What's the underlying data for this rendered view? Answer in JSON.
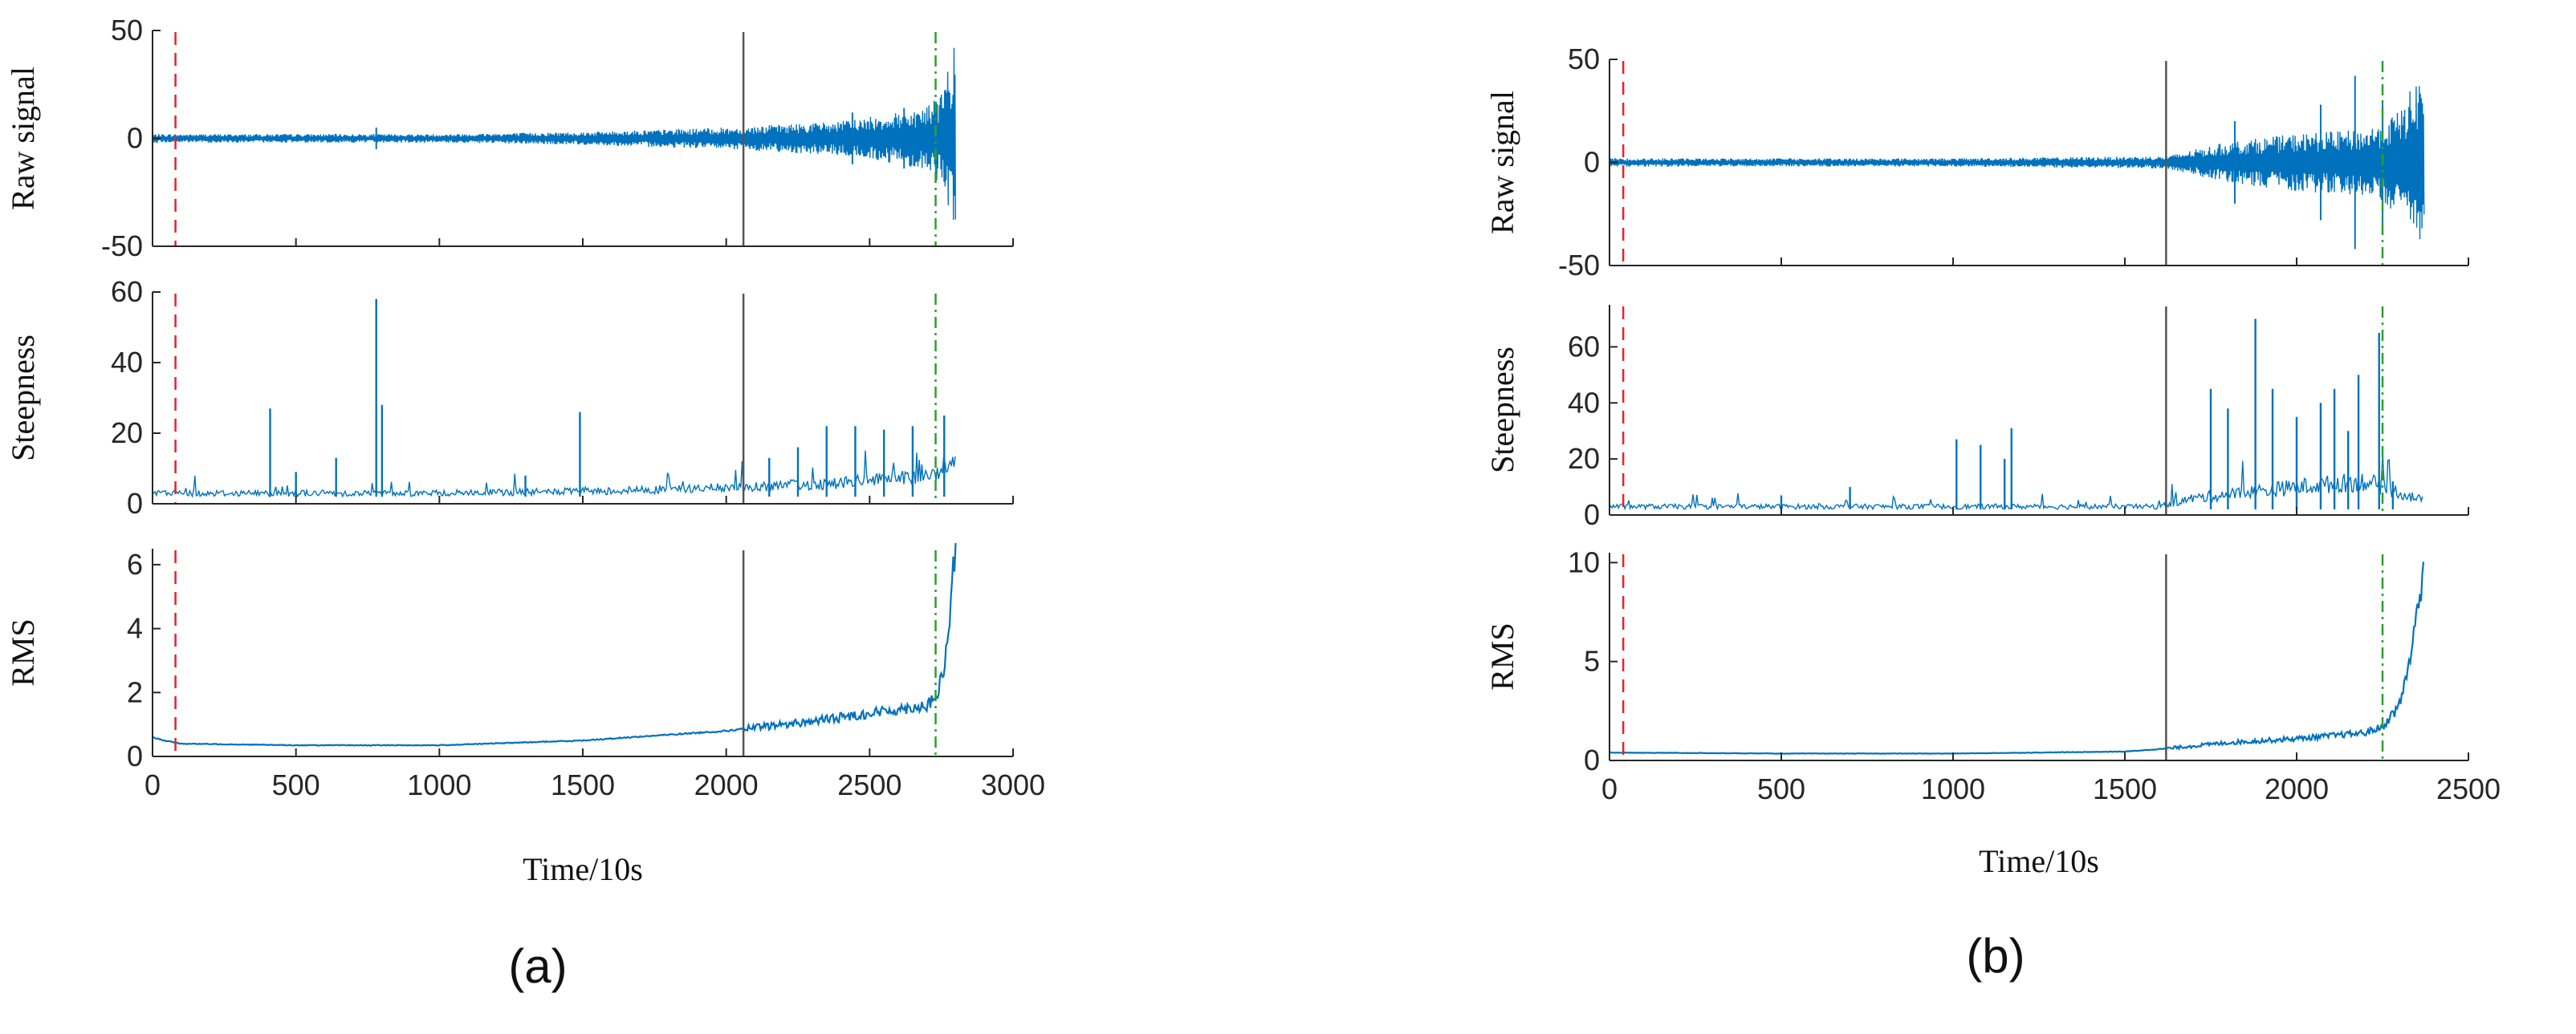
{
  "colors": {
    "signal": "#0072bd",
    "axis": "#262626",
    "failure_marker": "#e3242b",
    "degradation_marker": "#555555",
    "end_marker": "#2ca02c"
  },
  "chart_data": [
    {
      "type": "line",
      "panel_label": "(a)",
      "xlabel": "Time/10s",
      "xlim": [
        0,
        3000
      ],
      "xticks": [
        0,
        500,
        1000,
        1500,
        2000,
        2500,
        3000
      ],
      "x_end": 2800,
      "markers": [
        {
          "x": 80,
          "style": "red-dashed"
        },
        {
          "x": 2060,
          "style": "black-solid"
        },
        {
          "x": 2730,
          "style": "green-dashdot"
        }
      ],
      "subplots": [
        {
          "ylabel": "Raw signal",
          "ylim": [
            -50,
            50
          ],
          "yticks": [
            -50,
            0,
            50
          ],
          "envelope": [
            [
              0,
              2
            ],
            [
              500,
              2
            ],
            [
              1000,
              2
            ],
            [
              1500,
              3
            ],
            [
              2000,
              5
            ],
            [
              2400,
              8
            ],
            [
              2600,
              12
            ],
            [
              2700,
              15
            ],
            [
              2750,
              22
            ],
            [
              2780,
              35
            ],
            [
              2800,
              45
            ]
          ],
          "spikes": [
            {
              "x": 780,
              "y": 5
            },
            {
              "x": 2440,
              "y": 12
            },
            {
              "x": 2620,
              "y": 14
            }
          ]
        },
        {
          "ylabel": "Steepness",
          "ylim": [
            0,
            60
          ],
          "yticks": [
            0,
            20,
            40,
            60
          ],
          "baseline": [
            [
              0,
              3
            ],
            [
              1000,
              3
            ],
            [
              1500,
              3.5
            ],
            [
              2000,
              4.5
            ],
            [
              2300,
              5.5
            ],
            [
              2600,
              7
            ],
            [
              2730,
              8
            ],
            [
              2770,
              12
            ],
            [
              2800,
              13
            ]
          ],
          "spikes": [
            {
              "x": 410,
              "y": 27
            },
            {
              "x": 500,
              "y": 9
            },
            {
              "x": 640,
              "y": 13
            },
            {
              "x": 780,
              "y": 58
            },
            {
              "x": 800,
              "y": 28
            },
            {
              "x": 1300,
              "y": 8
            },
            {
              "x": 1490,
              "y": 26
            },
            {
              "x": 2150,
              "y": 13
            },
            {
              "x": 2250,
              "y": 16
            },
            {
              "x": 2350,
              "y": 22
            },
            {
              "x": 2450,
              "y": 22
            },
            {
              "x": 2550,
              "y": 21
            },
            {
              "x": 2650,
              "y": 22
            },
            {
              "x": 2760,
              "y": 25
            }
          ]
        },
        {
          "ylabel": "RMS",
          "ylim": [
            0,
            6.5
          ],
          "yticks": [
            0,
            2,
            4,
            6
          ],
          "curve": [
            [
              0,
              0.6
            ],
            [
              40,
              0.5
            ],
            [
              100,
              0.4
            ],
            [
              500,
              0.35
            ],
            [
              1000,
              0.35
            ],
            [
              1500,
              0.5
            ],
            [
              2000,
              0.8
            ],
            [
              2300,
              1.1
            ],
            [
              2500,
              1.35
            ],
            [
              2700,
              1.6
            ],
            [
              2730,
              1.8
            ],
            [
              2760,
              2.7
            ],
            [
              2780,
              4.5
            ],
            [
              2800,
              6.5
            ]
          ]
        }
      ]
    },
    {
      "type": "line",
      "panel_label": "(b)",
      "xlabel": "Time/10s",
      "xlim": [
        0,
        2500
      ],
      "xticks": [
        0,
        500,
        1000,
        1500,
        2000,
        2500
      ],
      "x_end": 2370,
      "markers": [
        {
          "x": 40,
          "style": "red-dashed"
        },
        {
          "x": 1620,
          "style": "black-solid"
        },
        {
          "x": 2250,
          "style": "green-dashdot"
        }
      ],
      "subplots": [
        {
          "ylabel": "Raw signal",
          "ylim": [
            -50,
            50
          ],
          "yticks": [
            -50,
            0,
            50
          ],
          "envelope": [
            [
              0,
              2
            ],
            [
              1000,
              2
            ],
            [
              1620,
              3
            ],
            [
              1800,
              10
            ],
            [
              2000,
              14
            ],
            [
              2200,
              16
            ],
            [
              2300,
              25
            ],
            [
              2340,
              38
            ],
            [
              2370,
              45
            ]
          ],
          "spikes": [
            {
              "x": 1820,
              "y": 20
            },
            {
              "x": 2070,
              "y": 28
            },
            {
              "x": 2170,
              "y": 42
            },
            {
              "x": 2250,
              "y": 30
            }
          ]
        },
        {
          "ylabel": "Steepness",
          "ylim": [
            0,
            75
          ],
          "yticks": [
            0,
            20,
            40,
            60
          ],
          "baseline": [
            [
              0,
              3
            ],
            [
              1600,
              3
            ],
            [
              1700,
              6
            ],
            [
              2000,
              10
            ],
            [
              2200,
              12
            ],
            [
              2300,
              8
            ],
            [
              2370,
              5
            ]
          ],
          "spikes": [
            {
              "x": 500,
              "y": 7
            },
            {
              "x": 700,
              "y": 10
            },
            {
              "x": 1010,
              "y": 27
            },
            {
              "x": 1080,
              "y": 25
            },
            {
              "x": 1150,
              "y": 20
            },
            {
              "x": 1170,
              "y": 31
            },
            {
              "x": 1750,
              "y": 45
            },
            {
              "x": 1800,
              "y": 38
            },
            {
              "x": 1880,
              "y": 70
            },
            {
              "x": 1930,
              "y": 45
            },
            {
              "x": 2000,
              "y": 35
            },
            {
              "x": 2070,
              "y": 40
            },
            {
              "x": 2110,
              "y": 45
            },
            {
              "x": 2150,
              "y": 30
            },
            {
              "x": 2180,
              "y": 50
            },
            {
              "x": 2240,
              "y": 65
            },
            {
              "x": 2280,
              "y": 12
            }
          ]
        },
        {
          "ylabel": "RMS",
          "ylim": [
            0,
            10.5
          ],
          "yticks": [
            0,
            5,
            10
          ],
          "curve": [
            [
              0,
              0.4
            ],
            [
              500,
              0.35
            ],
            [
              1000,
              0.35
            ],
            [
              1500,
              0.45
            ],
            [
              1620,
              0.6
            ],
            [
              1800,
              0.9
            ],
            [
              2000,
              1.1
            ],
            [
              2200,
              1.4
            ],
            [
              2250,
              1.7
            ],
            [
              2300,
              2.8
            ],
            [
              2340,
              6
            ],
            [
              2370,
              10.2
            ]
          ]
        }
      ]
    }
  ]
}
